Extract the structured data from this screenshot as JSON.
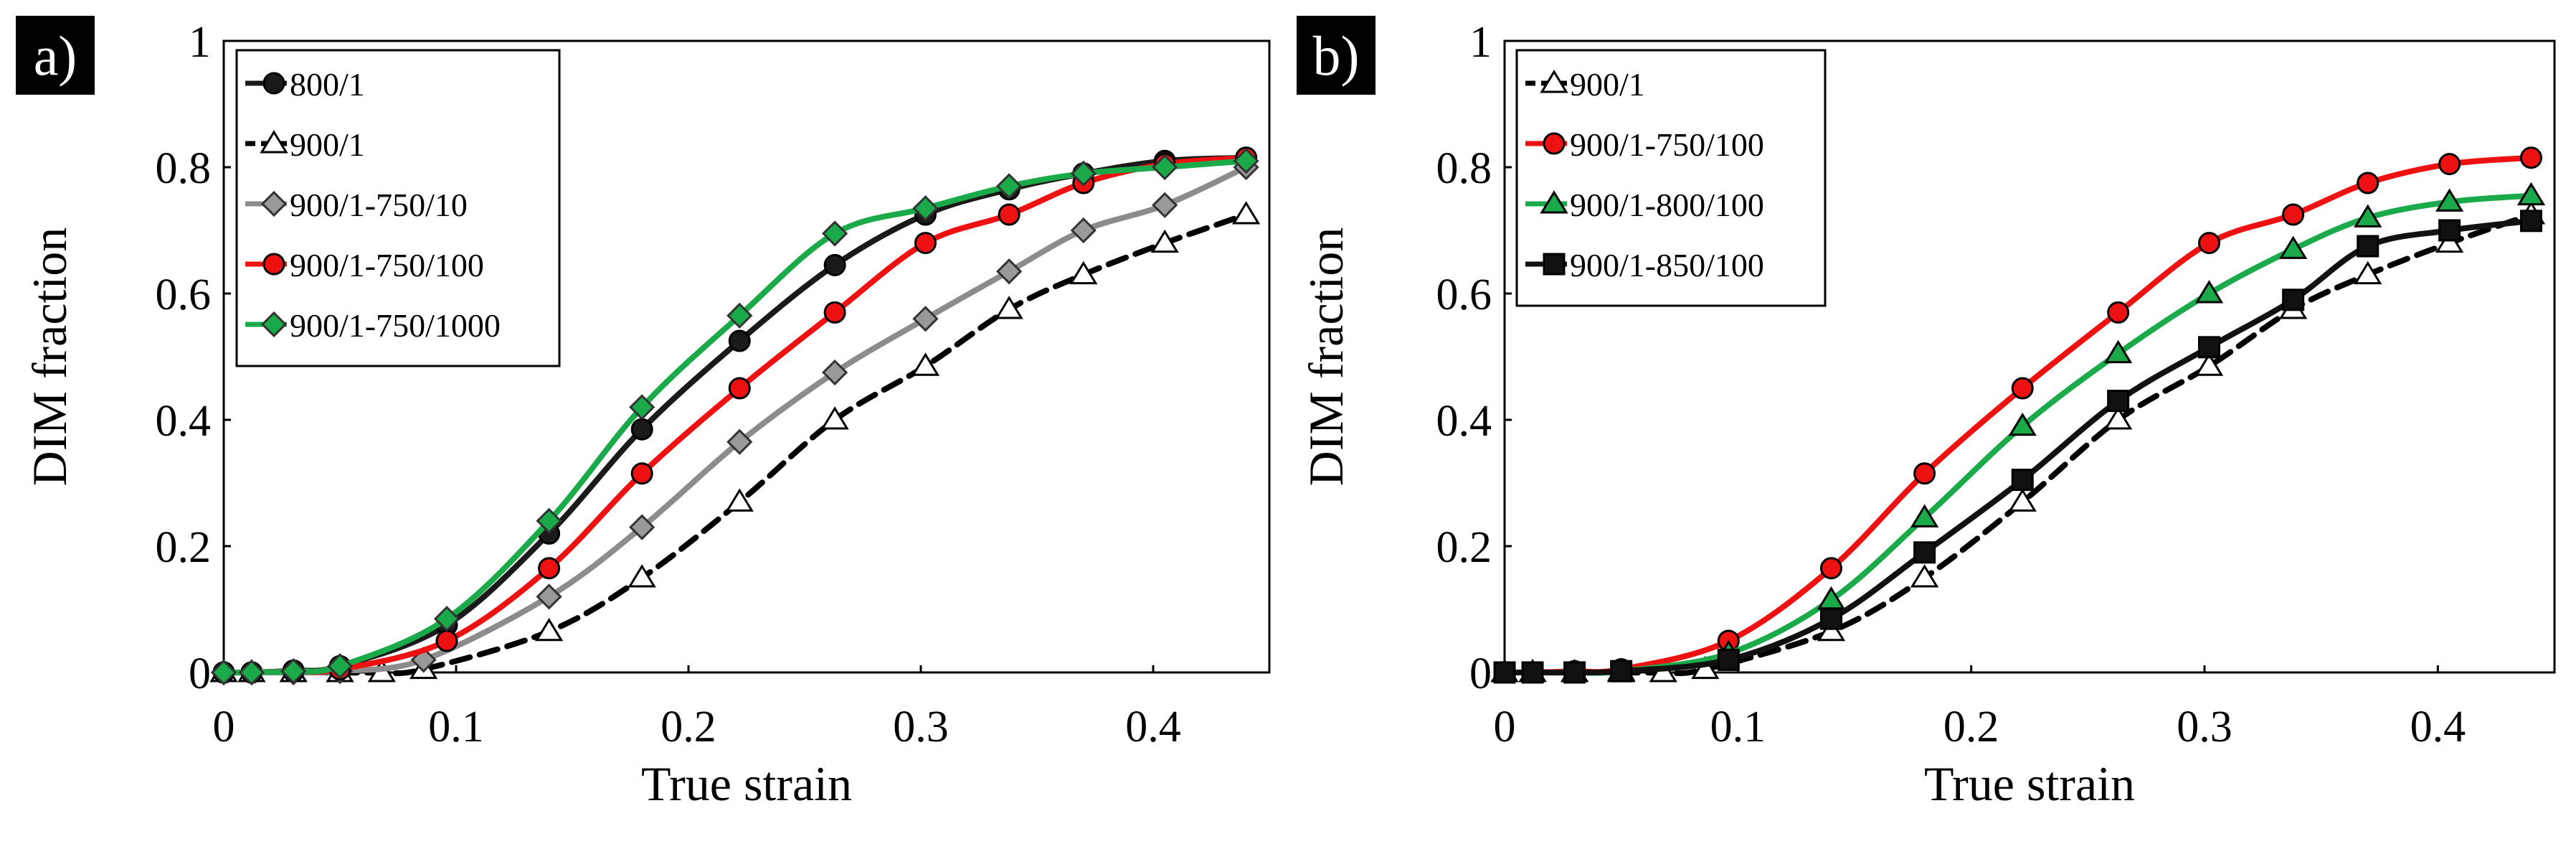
{
  "chart_data": [
    {
      "type": "line",
      "panel_label": "a)",
      "xlabel": "True strain",
      "ylabel": "DIM fraction",
      "xlim": [
        0,
        0.45
      ],
      "ylim": [
        0,
        1
      ],
      "x_ticks": [
        "0",
        "0.1",
        "0.2",
        "0.3",
        "0.4"
      ],
      "y_ticks": [
        "0",
        "0.2",
        "0.4",
        "0.6",
        "0.8",
        "1"
      ],
      "legend_position": "top-left",
      "series": [
        {
          "name": "800/1",
          "color": "#1a1a1a",
          "dash": "solid",
          "marker": "circle",
          "marker_fill": "#1a1a1a",
          "x": [
            0,
            0.012,
            0.03,
            0.05,
            0.096,
            0.14,
            0.18,
            0.222,
            0.263,
            0.302,
            0.338,
            0.37,
            0.405,
            0.44
          ],
          "y": [
            0,
            0,
            0.003,
            0.01,
            0.075,
            0.22,
            0.385,
            0.525,
            0.645,
            0.725,
            0.765,
            0.79,
            0.81,
            0.815
          ]
        },
        {
          "name": "900/1",
          "color": "#000000",
          "dash": "dashed",
          "marker": "triangle",
          "marker_fill": "#ffffff",
          "x": [
            0,
            0.012,
            0.03,
            0.05,
            0.068,
            0.086,
            0.14,
            0.18,
            0.222,
            0.263,
            0.302,
            0.338,
            0.37,
            0.405,
            0.44
          ],
          "y": [
            0,
            0,
            0,
            0,
            0,
            0.005,
            0.065,
            0.15,
            0.27,
            0.4,
            0.485,
            0.575,
            0.63,
            0.68,
            0.725
          ]
        },
        {
          "name": "900/1-750/10",
          "color": "#8c8c8c",
          "dash": "solid",
          "marker": "diamond",
          "marker_fill": "#999999",
          "x": [
            0,
            0.012,
            0.03,
            0.05,
            0.086,
            0.14,
            0.18,
            0.222,
            0.263,
            0.302,
            0.338,
            0.37,
            0.405,
            0.44
          ],
          "y": [
            0,
            0,
            0,
            0.002,
            0.02,
            0.12,
            0.23,
            0.365,
            0.475,
            0.56,
            0.635,
            0.7,
            0.74,
            0.8
          ]
        },
        {
          "name": "900/1-750/100",
          "color": "#ee1111",
          "dash": "solid",
          "marker": "circle",
          "marker_fill": "#ee1111",
          "x": [
            0,
            0.012,
            0.03,
            0.05,
            0.096,
            0.14,
            0.18,
            0.222,
            0.263,
            0.302,
            0.338,
            0.37,
            0.405,
            0.44
          ],
          "y": [
            0,
            0,
            0.002,
            0.005,
            0.05,
            0.165,
            0.315,
            0.45,
            0.57,
            0.68,
            0.725,
            0.775,
            0.805,
            0.815
          ]
        },
        {
          "name": "900/1-750/1000",
          "color": "#1aaa4a",
          "dash": "solid",
          "marker": "diamond",
          "marker_fill": "#1aaa4a",
          "x": [
            0,
            0.012,
            0.03,
            0.05,
            0.096,
            0.14,
            0.18,
            0.222,
            0.263,
            0.302,
            0.338,
            0.37,
            0.405,
            0.44
          ],
          "y": [
            0,
            0,
            0.002,
            0.01,
            0.085,
            0.24,
            0.42,
            0.565,
            0.695,
            0.735,
            0.77,
            0.79,
            0.8,
            0.81
          ]
        }
      ]
    },
    {
      "type": "line",
      "panel_label": "b)",
      "xlabel": "True strain",
      "ylabel": "DIM fraction",
      "xlim": [
        0,
        0.45
      ],
      "ylim": [
        0,
        1
      ],
      "x_ticks": [
        "0",
        "0.1",
        "0.2",
        "0.3",
        "0.4"
      ],
      "y_ticks": [
        "0",
        "0.2",
        "0.4",
        "0.6",
        "0.8",
        "1"
      ],
      "legend_position": "top-left",
      "series": [
        {
          "name": "900/1",
          "color": "#000000",
          "dash": "dashed",
          "marker": "triangle",
          "marker_fill": "#ffffff",
          "x": [
            0,
            0.012,
            0.03,
            0.05,
            0.068,
            0.086,
            0.14,
            0.18,
            0.222,
            0.263,
            0.302,
            0.338,
            0.37,
            0.405,
            0.44
          ],
          "y": [
            0,
            0,
            0,
            0,
            0,
            0.005,
            0.065,
            0.15,
            0.27,
            0.4,
            0.485,
            0.575,
            0.63,
            0.68,
            0.725
          ]
        },
        {
          "name": "900/1-750/100",
          "color": "#ee1111",
          "dash": "solid",
          "marker": "circle",
          "marker_fill": "#ee1111",
          "x": [
            0,
            0.012,
            0.03,
            0.05,
            0.096,
            0.14,
            0.18,
            0.222,
            0.263,
            0.302,
            0.338,
            0.37,
            0.405,
            0.44
          ],
          "y": [
            0,
            0,
            0.002,
            0.005,
            0.05,
            0.165,
            0.315,
            0.45,
            0.57,
            0.68,
            0.725,
            0.775,
            0.805,
            0.815
          ]
        },
        {
          "name": "900/1-800/100",
          "color": "#1aaa4a",
          "dash": "solid",
          "marker": "triangle",
          "marker_fill": "#1aaa4a",
          "x": [
            0,
            0.012,
            0.03,
            0.05,
            0.096,
            0.14,
            0.18,
            0.222,
            0.263,
            0.302,
            0.338,
            0.37,
            0.405,
            0.44
          ],
          "y": [
            0,
            0,
            0,
            0.002,
            0.03,
            0.115,
            0.245,
            0.39,
            0.505,
            0.6,
            0.67,
            0.72,
            0.745,
            0.755
          ]
        },
        {
          "name": "900/1-850/100",
          "color": "#111111",
          "dash": "solid",
          "marker": "square",
          "marker_fill": "#111111",
          "x": [
            0,
            0.012,
            0.03,
            0.05,
            0.096,
            0.14,
            0.18,
            0.222,
            0.263,
            0.302,
            0.338,
            0.37,
            0.405,
            0.44
          ],
          "y": [
            0,
            0,
            0,
            0.002,
            0.02,
            0.085,
            0.19,
            0.305,
            0.43,
            0.515,
            0.59,
            0.675,
            0.7,
            0.715
          ]
        }
      ]
    }
  ]
}
